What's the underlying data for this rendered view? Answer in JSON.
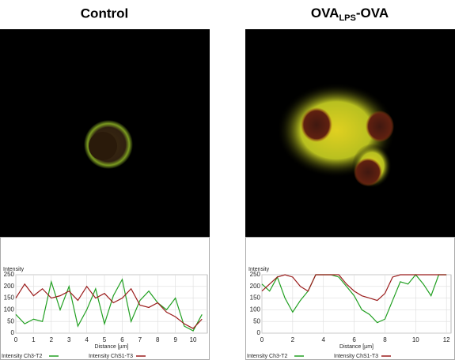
{
  "chart_data": [
    {
      "type": "line",
      "title": "Control",
      "ylabel": "Intensity",
      "xlabel": "Distance [µm]",
      "x": [
        0,
        0.5,
        1,
        1.5,
        2,
        2.5,
        3,
        3.5,
        4,
        4.5,
        5,
        5.5,
        6,
        6.5,
        7,
        7.5,
        8,
        8.5,
        9,
        9.5,
        10,
        10.5
      ],
      "series": [
        {
          "name": "Intensity Ch3-T2",
          "color": "#22a022",
          "values": [
            80,
            40,
            60,
            50,
            220,
            100,
            200,
            30,
            100,
            190,
            40,
            160,
            230,
            50,
            140,
            180,
            130,
            100,
            150,
            30,
            10,
            80
          ]
        },
        {
          "name": "Intensity ChS1-T3",
          "color": "#9b1c1c",
          "values": [
            150,
            210,
            160,
            190,
            150,
            160,
            180,
            140,
            200,
            150,
            170,
            130,
            150,
            190,
            120,
            110,
            130,
            90,
            70,
            40,
            20,
            60
          ]
        }
      ],
      "xlim": [
        0,
        10.8
      ],
      "xticks": [
        0,
        1,
        2,
        3,
        4,
        5,
        6,
        7,
        8,
        9,
        10
      ],
      "ylim": [
        0,
        250
      ],
      "yticks": [
        0,
        50,
        100,
        150,
        200,
        250
      ],
      "grid": true
    },
    {
      "type": "line",
      "title": "OVA",
      "title_sub": "LPS",
      "title_end": "-OVA",
      "ylabel": "Intensity",
      "xlabel": "Distance [µm]",
      "x": [
        0,
        0.5,
        1,
        1.5,
        2,
        2.5,
        3,
        3.5,
        4,
        4.5,
        5,
        5.5,
        6,
        6.5,
        7,
        7.5,
        8,
        8.5,
        9,
        9.5,
        10,
        10.5,
        11,
        11.5,
        12
      ],
      "series": [
        {
          "name": "Intensity Ch3-T2",
          "color": "#22a022",
          "values": [
            210,
            180,
            240,
            150,
            90,
            140,
            180,
            250,
            250,
            250,
            240,
            200,
            160,
            100,
            80,
            45,
            60,
            140,
            220,
            210,
            250,
            210,
            160,
            250,
            250
          ]
        },
        {
          "name": "Intensity ChS1-T3",
          "color": "#9b1c1c",
          "values": [
            180,
            210,
            240,
            250,
            240,
            200,
            180,
            250,
            250,
            250,
            250,
            210,
            180,
            160,
            150,
            140,
            170,
            240,
            250,
            250,
            250,
            250,
            250,
            250,
            250
          ]
        }
      ],
      "xlim": [
        0,
        12.3
      ],
      "xticks": [
        0,
        2,
        4,
        6,
        8,
        10,
        12
      ],
      "ylim": [
        0,
        250
      ],
      "yticks": [
        0,
        50,
        100,
        150,
        200,
        250
      ],
      "grid": true
    }
  ]
}
